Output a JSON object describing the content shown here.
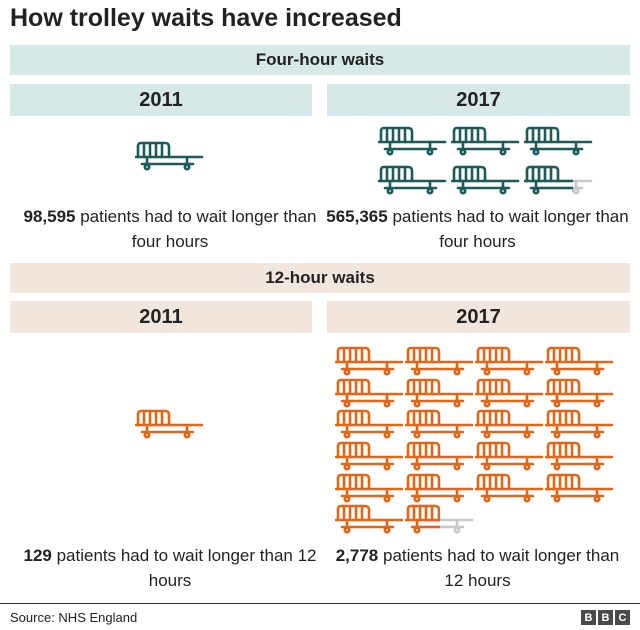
{
  "title": "How trolley waits have increased",
  "colors": {
    "four_hour_bar": "#d6e8e8",
    "twelve_hour_bar": "#f1e6dd",
    "four_hour_trolley": "#1d5a5a",
    "twelve_hour_trolley": "#e0671a",
    "partial_trolley": "#c8c8c8"
  },
  "four_hour": {
    "heading": "Four-hour waits",
    "left": {
      "year": "2011",
      "trolleys_full": 1,
      "trolleys_partial_fraction": 0,
      "count": "98,595",
      "caption_rest": " patients had to wait longer than four hours"
    },
    "right": {
      "year": "2017",
      "trolleys_full": 5,
      "trolleys_partial_fraction": 0.7,
      "count": "565,365",
      "caption_rest": " patients had to wait longer than four hours"
    }
  },
  "twelve_hour": {
    "heading": "12-hour waits",
    "left": {
      "year": "2011",
      "trolleys_full": 1,
      "trolleys_partial_fraction": 0,
      "count": "129",
      "caption_rest": " patients had to wait longer than 12 hours"
    },
    "right": {
      "year": "2017",
      "trolleys_full": 21,
      "trolleys_partial_fraction": 0.5,
      "count": "2,778",
      "caption_rest": " patients had to wait longer than 12 hours"
    }
  },
  "footer": {
    "source": "Source: NHS England",
    "logo_letters": [
      "B",
      "B",
      "C"
    ]
  }
}
